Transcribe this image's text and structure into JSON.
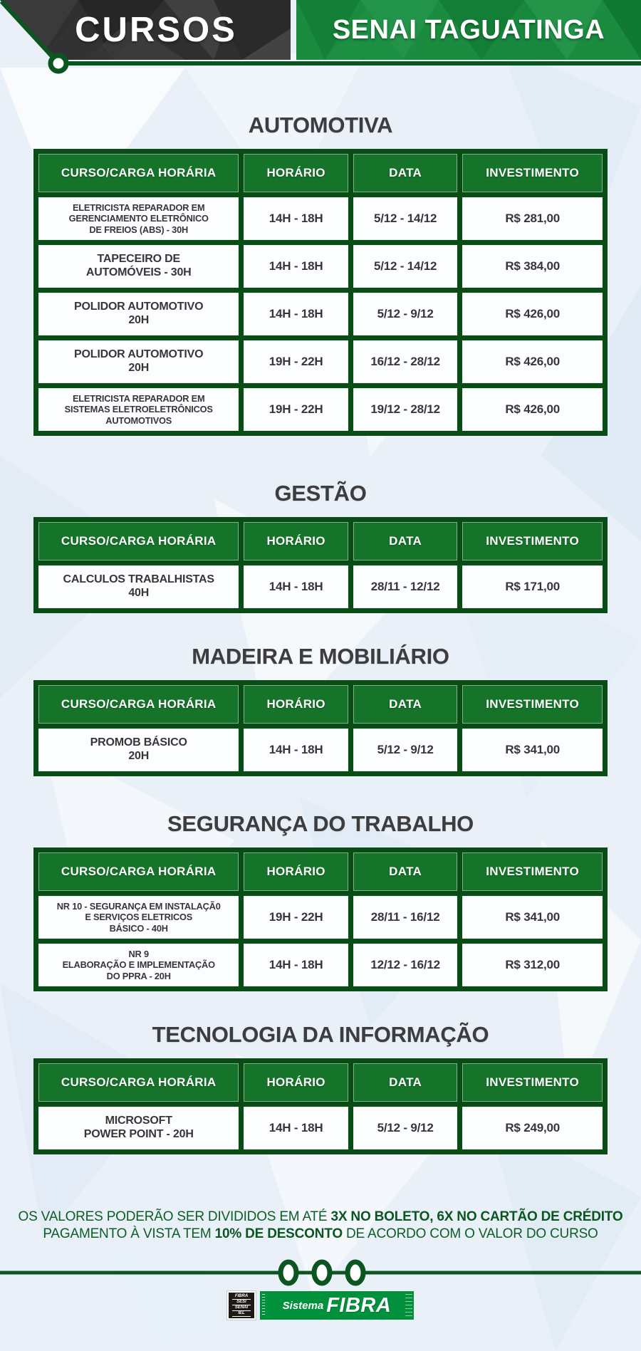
{
  "header": {
    "left_title": "CURSOS",
    "right_title": "SENAI TAGUATINGA"
  },
  "columns": [
    "CURSO/CARGA HORÁRIA",
    "HORÁRIO",
    "DATA",
    "INVESTIMENTO"
  ],
  "sections": [
    {
      "title": "AUTOMOTIVA",
      "rows": [
        {
          "course_lines": [
            "ELETRICISTA REPARADOR EM",
            "GERENCIAMENTO ELETRÔNICO",
            "DE FREIOS (ABS) - 30H"
          ],
          "small": true,
          "schedule": "14H - 18H",
          "date": "5/12 - 14/12",
          "price": "R$ 281,00"
        },
        {
          "course_lines": [
            "TAPECEIRO DE",
            "AUTOMÓVEIS - 30H"
          ],
          "small": false,
          "schedule": "14H - 18H",
          "date": "5/12 - 14/12",
          "price": "R$ 384,00"
        },
        {
          "course_lines": [
            "POLIDOR AUTOMOTIVO",
            "20H"
          ],
          "small": false,
          "schedule": "14H - 18H",
          "date": "5/12 - 9/12",
          "price": "R$ 426,00"
        },
        {
          "course_lines": [
            "POLIDOR AUTOMOTIVO",
            "20H"
          ],
          "small": false,
          "schedule": "19H - 22H",
          "date": "16/12 - 28/12",
          "price": "R$ 426,00"
        },
        {
          "course_lines": [
            "ELETRICISTA REPARADOR EM",
            "SISTEMAS ELETROELETRÔNICOS",
            "AUTOMOTIVOS"
          ],
          "small": true,
          "schedule": "19H - 22H",
          "date": "19/12 - 28/12",
          "price": "R$ 426,00"
        }
      ]
    },
    {
      "title": "GESTÃO",
      "rows": [
        {
          "course_lines": [
            "CALCULOS TRABALHISTAS",
            "40H"
          ],
          "small": false,
          "schedule": "14H - 18H",
          "date": "28/11 - 12/12",
          "price": "R$ 171,00"
        }
      ]
    },
    {
      "title": "MADEIRA E MOBILIÁRIO",
      "rows": [
        {
          "course_lines": [
            "PROMOB BÁSICO",
            "20H"
          ],
          "small": false,
          "schedule": "14H - 18H",
          "date": "5/12 - 9/12",
          "price": "R$ 341,00"
        }
      ]
    },
    {
      "title": "SEGURANÇA DO TRABALHO",
      "rows": [
        {
          "course_lines": [
            "NR 10 - SEGURANÇA EM INSTALAÇÃ0",
            "E SERVIÇOS ELETRICOS",
            "BÁSICO - 40H"
          ],
          "small": true,
          "schedule": "19H - 22H",
          "date": "28/11 - 16/12",
          "price": "R$ 341,00"
        },
        {
          "course_lines": [
            "NR 9",
            "ELABORAÇÃO E IMPLEMENTAÇÃO",
            "DO PPRA - 20H"
          ],
          "small": true,
          "schedule": "14H - 18H",
          "date": "12/12 - 16/12",
          "price": "R$ 312,00"
        }
      ]
    },
    {
      "title": "TECNOLOGIA DA INFORMAÇÃO",
      "rows": [
        {
          "course_lines": [
            "MICROSOFT",
            "POWER POINT - 20H"
          ],
          "small": false,
          "schedule": "14H - 18H",
          "date": "5/12 - 9/12",
          "price": "R$ 249,00"
        }
      ]
    }
  ],
  "footer": {
    "line1": [
      {
        "text": "OS VALORES PODERÃO SER DIVIDIDOS EM ATÉ ",
        "bold": false
      },
      {
        "text": "3X NO BOLETO, 6X NO CARTÃO DE CRÉDITO",
        "bold": true
      }
    ],
    "line2": [
      {
        "text": "PAGAMENTO À VISTA TEM ",
        "bold": false
      },
      {
        "text": "10% DE DESCONTO",
        "bold": true
      },
      {
        "text": " DE ACORDO COM O VALOR DO CURSO",
        "bold": false
      }
    ]
  },
  "logo": {
    "stack": [
      "FIBRA",
      "SESI",
      "SENAI",
      "IEL"
    ],
    "system_label": "Sistema",
    "system_name": "FIBRA"
  },
  "colors": {
    "banner_dark": "#2f2f2f",
    "banner_green": "#1b8b3f",
    "table_frame_green": "#0a4c15",
    "table_header_green": "#157429",
    "note_green": "#0c5e24",
    "logo_green": "#00913c",
    "page_background": "#e9f0f8",
    "title_gray": "#3d3d3f"
  }
}
